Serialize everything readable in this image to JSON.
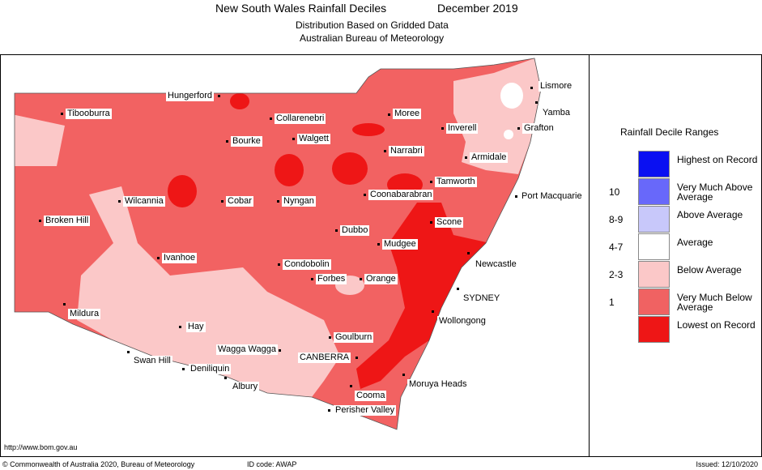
{
  "header": {
    "title": "New South Wales Rainfall Deciles",
    "period": "December 2019",
    "subtitle_1": "Distribution Based on Gridded Data",
    "subtitle_2": "Australian Bureau of Meteorology"
  },
  "towns": [
    "Lismore",
    "Tibooburra",
    "Hungerford",
    "Collarenebri",
    "Moree",
    "Inverell",
    "Yamba",
    "Grafton",
    "Bourke",
    "Walgett",
    "Narrabri",
    "Armidale",
    "Tamworth",
    "Coonabarabran",
    "Port Macquarie",
    "Wilcannia",
    "Cobar",
    "Nyngan",
    "Broken Hill",
    "Scone",
    "Dubbo",
    "Mudgee",
    "Ivanhoe",
    "Newcastle",
    "Condobolin",
    "Forbes",
    "Orange",
    "SYDNEY",
    "Mildura",
    "Wollongong",
    "Hay",
    "Goulburn",
    "Wagga Wagga",
    "CANBERRA",
    "Swan Hill",
    "Deniliquin",
    "Moruya Heads",
    "Albury",
    "Cooma",
    "Perisher Valley"
  ],
  "url": "http://www.bom.gov.au",
  "legend": {
    "title": "Rainfall Decile Ranges",
    "items": [
      {
        "label": "Highest on Record",
        "color": "#0a10f2"
      },
      {
        "label": "Very Much Above Average",
        "color": "#6868fa",
        "range": "10"
      },
      {
        "label": "Above Average",
        "color": "#c8c8fa",
        "range": "8-9"
      },
      {
        "label": "Average",
        "color": "#ffffff",
        "range": "4-7"
      },
      {
        "label": "Below Average",
        "color": "#fbc8c8",
        "range": "2-3"
      },
      {
        "label": "Very Much Below Average",
        "color": "#f06262",
        "range": "1"
      },
      {
        "label": "Lowest on Record",
        "color": "#ee1616"
      }
    ]
  },
  "footer": {
    "copyright": "© Commonwealth of Australia 2020, Bureau of Meteorology",
    "id_code": "ID code: AWAP",
    "issued": "Issued: 12/10/2020"
  }
}
